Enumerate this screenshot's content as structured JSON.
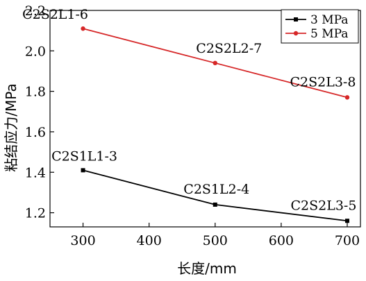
{
  "chart_data": {
    "type": "line",
    "xlabel": "长度/mm",
    "ylabel": "粘结应力/MPa",
    "xlim": [
      250,
      720
    ],
    "ylim": [
      1.13,
      2.2
    ],
    "xticks": [
      300,
      400,
      500,
      600,
      700
    ],
    "yticks": [
      1.2,
      1.4,
      1.6,
      1.8,
      2.0,
      2.2
    ],
    "ytick_labels": [
      "1.2",
      "1.4",
      "1.6",
      "1.8",
      "2.0",
      "2.2"
    ],
    "legend_position": "top-right",
    "grid": false,
    "series": [
      {
        "name": "3 MPa",
        "color": "#000000",
        "marker": "square",
        "x": [
          300,
          500,
          700
        ],
        "values": [
          1.41,
          1.24,
          1.16
        ],
        "point_labels": [
          "C2S1L1-3",
          "C2S1L2-4",
          "C2S2L3-5"
        ]
      },
      {
        "name": "5 MPa",
        "color": "#d62728",
        "marker": "circle",
        "x": [
          300,
          500,
          700
        ],
        "values": [
          2.11,
          1.94,
          1.77
        ],
        "point_labels": [
          "C2S2L1-6",
          "C2S2L2-7",
          "C2S2L3-8"
        ]
      }
    ]
  }
}
